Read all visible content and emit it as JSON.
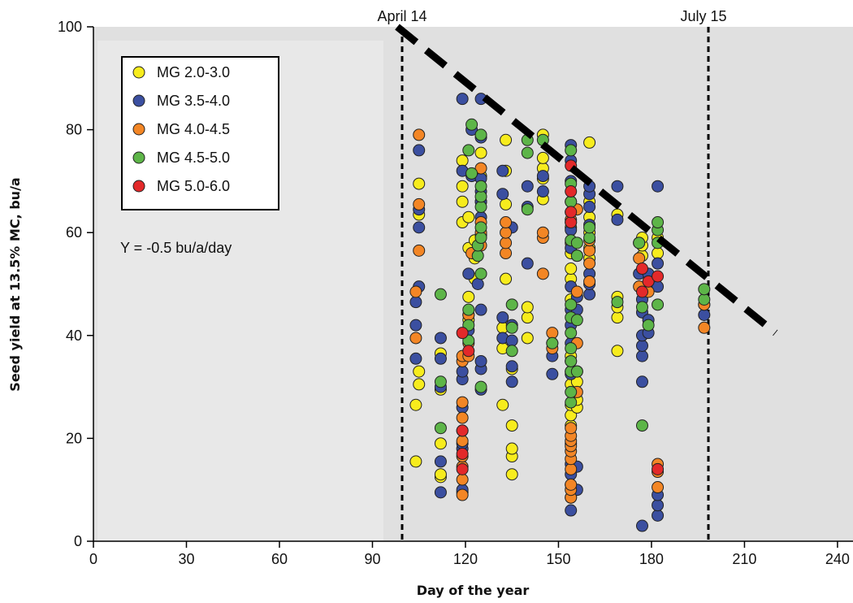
{
  "chart_data": {
    "type": "scatter",
    "xlabel": "Day of the year",
    "ylabel": "Seed yield at 13.5% MC, bu/a",
    "xlim": [
      0,
      245
    ],
    "ylim": [
      0,
      100
    ],
    "xticks": [
      0,
      30,
      60,
      90,
      120,
      150,
      180,
      210,
      240
    ],
    "yticks": [
      0,
      20,
      40,
      60,
      80,
      100
    ],
    "grid": false,
    "legend_position": "top-left",
    "reference_lines": [
      {
        "x": 101,
        "label": "April 14"
      },
      {
        "x": 200,
        "label": "July 15"
      }
    ],
    "trend_line": {
      "x": [
        98,
        220
      ],
      "y": [
        100,
        40.5
      ],
      "style": "dashed",
      "color": "#000000"
    },
    "annotation": "Y = -0.5 bu/a/day",
    "series": [
      {
        "name": "MG 2.0-3.0",
        "color": "#f7ec1d",
        "points": [
          [
            104,
            15.5
          ],
          [
            104,
            26.5
          ],
          [
            105,
            30.5
          ],
          [
            105,
            33
          ],
          [
            105,
            63.5
          ],
          [
            105,
            69.5
          ],
          [
            112,
            12.5
          ],
          [
            112,
            13
          ],
          [
            112,
            19
          ],
          [
            112,
            29.5
          ],
          [
            112,
            36.5
          ],
          [
            119,
            62
          ],
          [
            119,
            66
          ],
          [
            119,
            69
          ],
          [
            119,
            74
          ],
          [
            121,
            43
          ],
          [
            121,
            47.5
          ],
          [
            121,
            57
          ],
          [
            121,
            63
          ],
          [
            123,
            51
          ],
          [
            123,
            55
          ],
          [
            123,
            58.5
          ],
          [
            125,
            59.5
          ],
          [
            125,
            66
          ],
          [
            125,
            71
          ],
          [
            125,
            75.5
          ],
          [
            132,
            26.5
          ],
          [
            132,
            37.5
          ],
          [
            132,
            41.5
          ],
          [
            133,
            51
          ],
          [
            133,
            65.5
          ],
          [
            133,
            72
          ],
          [
            133,
            78
          ],
          [
            135,
            13
          ],
          [
            135,
            16.5
          ],
          [
            135,
            18
          ],
          [
            135,
            22.5
          ],
          [
            135,
            33.5
          ],
          [
            140,
            39.5
          ],
          [
            140,
            43.5
          ],
          [
            140,
            45.5
          ],
          [
            145,
            66.5
          ],
          [
            145,
            70.5
          ],
          [
            145,
            72.5
          ],
          [
            145,
            74.5
          ],
          [
            145,
            79
          ],
          [
            154,
            22.5
          ],
          [
            154,
            24.5
          ],
          [
            154,
            26.5
          ],
          [
            154,
            30.5
          ],
          [
            154,
            33
          ],
          [
            154,
            36
          ],
          [
            154,
            47
          ],
          [
            154,
            51
          ],
          [
            154,
            53
          ],
          [
            154,
            56
          ],
          [
            154,
            58
          ],
          [
            154,
            61
          ],
          [
            156,
            26
          ],
          [
            156,
            27.5
          ],
          [
            156,
            31
          ],
          [
            156,
            33
          ],
          [
            160,
            55
          ],
          [
            160,
            57
          ],
          [
            160,
            60
          ],
          [
            160,
            63
          ],
          [
            160,
            66
          ],
          [
            160,
            77.5
          ],
          [
            169,
            37
          ],
          [
            169,
            43.5
          ],
          [
            169,
            45.5
          ],
          [
            169,
            47.5
          ],
          [
            169,
            63.5
          ],
          [
            177,
            55.5
          ],
          [
            177,
            57.5
          ],
          [
            177,
            59
          ],
          [
            182,
            56
          ],
          [
            182,
            59
          ]
        ]
      },
      {
        "name": "MG 3.5-4.0",
        "color": "#3b4fa0",
        "points": [
          [
            104,
            35.5
          ],
          [
            104,
            42
          ],
          [
            104,
            46.5
          ],
          [
            105,
            49.5
          ],
          [
            105,
            61
          ],
          [
            105,
            64.5
          ],
          [
            105,
            76
          ],
          [
            112,
            9.5
          ],
          [
            112,
            15.5
          ],
          [
            112,
            30
          ],
          [
            112,
            35.5
          ],
          [
            112,
            39.5
          ],
          [
            119,
            9.5
          ],
          [
            119,
            10
          ],
          [
            119,
            18
          ],
          [
            119,
            19
          ],
          [
            119,
            26
          ],
          [
            119,
            31.5
          ],
          [
            119,
            33
          ],
          [
            119,
            72
          ],
          [
            119,
            86
          ],
          [
            121,
            41
          ],
          [
            121,
            44
          ],
          [
            121,
            52
          ],
          [
            122,
            71
          ],
          [
            122,
            80
          ],
          [
            124,
            50
          ],
          [
            125,
            29.5
          ],
          [
            125,
            33.5
          ],
          [
            125,
            35
          ],
          [
            125,
            45
          ],
          [
            125,
            63
          ],
          [
            125,
            66
          ],
          [
            125,
            68
          ],
          [
            125,
            70.5
          ],
          [
            125,
            78.5
          ],
          [
            125,
            86
          ],
          [
            132,
            39.5
          ],
          [
            132,
            43.5
          ],
          [
            132,
            67.5
          ],
          [
            132,
            72
          ],
          [
            135,
            31
          ],
          [
            135,
            34
          ],
          [
            135,
            39
          ],
          [
            135,
            42
          ],
          [
            135,
            61
          ],
          [
            140,
            54
          ],
          [
            140,
            65
          ],
          [
            140,
            69
          ],
          [
            145,
            68
          ],
          [
            145,
            71
          ],
          [
            148,
            32.5
          ],
          [
            148,
            36
          ],
          [
            148,
            38.5
          ],
          [
            154,
            6
          ],
          [
            154,
            8.5
          ],
          [
            154,
            11
          ],
          [
            154,
            13
          ],
          [
            154,
            15
          ],
          [
            154,
            19
          ],
          [
            154,
            32.5
          ],
          [
            154,
            35
          ],
          [
            154,
            38.5
          ],
          [
            154,
            42
          ],
          [
            154,
            45
          ],
          [
            154,
            49.5
          ],
          [
            154,
            57
          ],
          [
            154,
            60.5
          ],
          [
            154,
            62
          ],
          [
            154,
            70
          ],
          [
            154,
            74
          ],
          [
            154,
            77
          ],
          [
            156,
            10
          ],
          [
            156,
            14.5
          ],
          [
            156,
            45
          ],
          [
            156,
            47.5
          ],
          [
            160,
            48
          ],
          [
            160,
            50
          ],
          [
            160,
            52
          ],
          [
            160,
            61.5
          ],
          [
            160,
            65
          ],
          [
            160,
            67.5
          ],
          [
            160,
            69
          ],
          [
            169,
            62.5
          ],
          [
            169,
            69
          ],
          [
            176,
            52
          ],
          [
            176,
            58
          ],
          [
            177,
            3
          ],
          [
            177,
            31
          ],
          [
            177,
            36
          ],
          [
            177,
            38
          ],
          [
            177,
            40
          ],
          [
            177,
            44.5
          ],
          [
            177,
            47
          ],
          [
            179,
            40.5
          ],
          [
            179,
            43
          ],
          [
            179,
            50
          ],
          [
            179,
            52
          ],
          [
            182,
            5
          ],
          [
            182,
            7
          ],
          [
            182,
            9
          ],
          [
            182,
            49.5
          ],
          [
            182,
            54
          ],
          [
            182,
            69
          ],
          [
            197,
            44
          ],
          [
            197,
            46
          ]
        ]
      },
      {
        "name": "MG 4.0-4.5",
        "color": "#f38625",
        "points": [
          [
            104,
            39.5
          ],
          [
            104,
            48.5
          ],
          [
            105,
            56.5
          ],
          [
            105,
            65.5
          ],
          [
            105,
            79
          ],
          [
            119,
            9
          ],
          [
            119,
            12
          ],
          [
            119,
            14.5
          ],
          [
            119,
            16.5
          ],
          [
            119,
            19.5
          ],
          [
            119,
            21.5
          ],
          [
            119,
            24
          ],
          [
            119,
            27
          ],
          [
            119,
            35
          ],
          [
            119,
            36
          ],
          [
            121,
            36
          ],
          [
            121,
            38.5
          ],
          [
            121,
            44
          ],
          [
            122,
            56
          ],
          [
            125,
            57.5
          ],
          [
            125,
            60
          ],
          [
            125,
            62
          ],
          [
            125,
            72.5
          ],
          [
            133,
            56
          ],
          [
            133,
            58
          ],
          [
            133,
            60
          ],
          [
            133,
            62
          ],
          [
            145,
            52
          ],
          [
            145,
            59
          ],
          [
            145,
            60
          ],
          [
            148,
            37.5
          ],
          [
            148,
            40.5
          ],
          [
            154,
            8.5
          ],
          [
            154,
            10
          ],
          [
            154,
            11
          ],
          [
            154,
            14
          ],
          [
            154,
            16
          ],
          [
            154,
            17.5
          ],
          [
            154,
            18.5
          ],
          [
            154,
            19.5
          ],
          [
            154,
            20.5
          ],
          [
            154,
            22
          ],
          [
            154,
            62.5
          ],
          [
            154,
            64
          ],
          [
            154,
            66
          ],
          [
            156,
            29
          ],
          [
            156,
            38.5
          ],
          [
            156,
            48.5
          ],
          [
            156,
            55.5
          ],
          [
            156,
            64.5
          ],
          [
            160,
            50.5
          ],
          [
            160,
            54
          ],
          [
            160,
            56.5
          ],
          [
            160,
            58.5
          ],
          [
            176,
            49.5
          ],
          [
            176,
            55
          ],
          [
            179,
            48.5
          ],
          [
            182,
            10.5
          ],
          [
            182,
            13.5
          ],
          [
            182,
            15
          ],
          [
            197,
            41.5
          ],
          [
            197,
            46
          ]
        ]
      },
      {
        "name": "MG 4.5-5.0",
        "color": "#5db548",
        "points": [
          [
            112,
            22
          ],
          [
            112,
            31
          ],
          [
            112,
            48
          ],
          [
            121,
            39
          ],
          [
            121,
            42
          ],
          [
            121,
            45
          ],
          [
            121,
            76
          ],
          [
            122,
            71.5
          ],
          [
            122,
            81
          ],
          [
            124,
            55.5
          ],
          [
            124,
            57.5
          ],
          [
            125,
            30
          ],
          [
            125,
            52
          ],
          [
            125,
            59
          ],
          [
            125,
            61
          ],
          [
            125,
            65
          ],
          [
            125,
            67
          ],
          [
            125,
            69
          ],
          [
            125,
            79
          ],
          [
            135,
            37
          ],
          [
            135,
            41.5
          ],
          [
            135,
            46
          ],
          [
            140,
            64.5
          ],
          [
            140,
            75.5
          ],
          [
            140,
            78
          ],
          [
            145,
            78
          ],
          [
            148,
            38.5
          ],
          [
            154,
            27
          ],
          [
            154,
            29
          ],
          [
            154,
            33
          ],
          [
            154,
            35
          ],
          [
            154,
            37.5
          ],
          [
            154,
            40.5
          ],
          [
            154,
            43.5
          ],
          [
            154,
            46
          ],
          [
            154,
            58.5
          ],
          [
            154,
            66
          ],
          [
            154,
            69.5
          ],
          [
            154,
            76
          ],
          [
            156,
            33
          ],
          [
            156,
            43
          ],
          [
            156,
            55.5
          ],
          [
            156,
            58
          ],
          [
            160,
            59
          ],
          [
            160,
            61
          ],
          [
            169,
            46.5
          ],
          [
            176,
            58
          ],
          [
            177,
            22.5
          ],
          [
            177,
            45.5
          ],
          [
            179,
            42
          ],
          [
            182,
            46
          ],
          [
            182,
            58
          ],
          [
            182,
            60.5
          ],
          [
            182,
            62
          ],
          [
            197,
            47
          ],
          [
            197,
            49
          ]
        ]
      },
      {
        "name": "MG 5.0-6.0",
        "color": "#e3292a",
        "points": [
          [
            119,
            14
          ],
          [
            119,
            17
          ],
          [
            119,
            21.5
          ],
          [
            119,
            40.5
          ],
          [
            121,
            37
          ],
          [
            154,
            62
          ],
          [
            154,
            64
          ],
          [
            154,
            68
          ],
          [
            154,
            73
          ],
          [
            177,
            48.5
          ],
          [
            177,
            53
          ],
          [
            179,
            50.5
          ],
          [
            182,
            14
          ],
          [
            182,
            51.5
          ]
        ]
      }
    ]
  }
}
